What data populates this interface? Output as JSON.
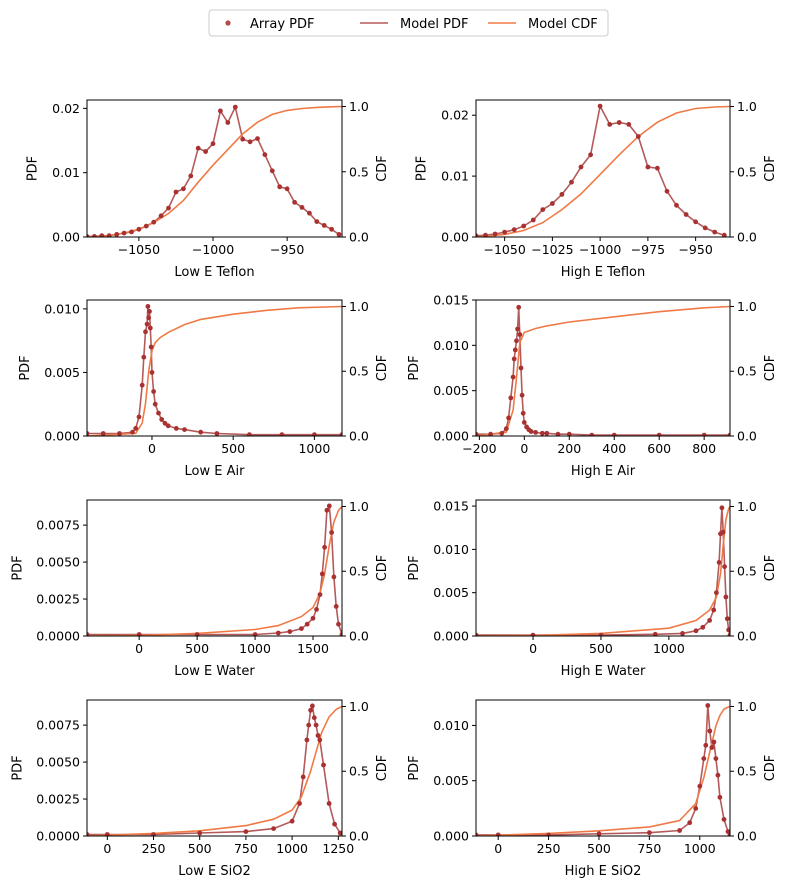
{
  "legend": {
    "entries": [
      {
        "label": "Array PDF",
        "kind": "marker",
        "color": "#b24a4a"
      },
      {
        "label": "Model PDF",
        "kind": "line",
        "color": "#b55a5a"
      },
      {
        "label": "Model CDF",
        "kind": "line",
        "color": "#f07a45"
      }
    ],
    "placement": "top-center"
  },
  "chart_data": [
    {
      "type": "line",
      "xlabel": "Low E Teflon",
      "ylabel": "PDF",
      "y2label": "CDF",
      "xlim": [
        -1085,
        -913
      ],
      "ylim": [
        0,
        0.0213
      ],
      "y2lim": [
        0,
        1.05
      ],
      "xticks": [
        -1050,
        -1000,
        -950
      ],
      "yticks": [
        0,
        0.01,
        0.02
      ],
      "y2ticks": [
        0,
        0.5,
        1.0
      ],
      "pdf": {
        "x": [
          -1085,
          -1080,
          -1075,
          -1070,
          -1065,
          -1060,
          -1055,
          -1050,
          -1045,
          -1040,
          -1035,
          -1030,
          -1025,
          -1020,
          -1015,
          -1010,
          -1005,
          -1000,
          -995,
          -990,
          -985,
          -980,
          -975,
          -970,
          -965,
          -960,
          -955,
          -950,
          -945,
          -940,
          -935,
          -930,
          -925,
          -920,
          -915
        ],
        "y": [
          0.0001,
          0.0001,
          0.0002,
          0.0002,
          0.0004,
          0.0006,
          0.0008,
          0.0012,
          0.0017,
          0.0023,
          0.0033,
          0.0045,
          0.007,
          0.0075,
          0.0095,
          0.0138,
          0.0133,
          0.0145,
          0.0196,
          0.0178,
          0.0202,
          0.0152,
          0.0148,
          0.0153,
          0.0128,
          0.0103,
          0.0078,
          0.0075,
          0.0054,
          0.0046,
          0.0037,
          0.0024,
          0.0018,
          0.0012,
          0.0004
        ]
      },
      "cdf": {
        "x": [
          -1085,
          -1070,
          -1060,
          -1050,
          -1040,
          -1030,
          -1020,
          -1010,
          -1000,
          -990,
          -980,
          -970,
          -960,
          -950,
          -940,
          -930,
          -920,
          -913
        ],
        "y": [
          0.0,
          0.01,
          0.03,
          0.06,
          0.11,
          0.18,
          0.28,
          0.42,
          0.55,
          0.67,
          0.79,
          0.88,
          0.94,
          0.97,
          0.985,
          0.993,
          0.998,
          1.0
        ]
      }
    },
    {
      "type": "line",
      "xlabel": "High E Teflon",
      "ylabel": "PDF",
      "y2label": "CDF",
      "xlim": [
        -1065,
        -932
      ],
      "ylim": [
        0,
        0.0225
      ],
      "y2lim": [
        0,
        1.05
      ],
      "xticks": [
        -1050,
        -1025,
        -1000,
        -975,
        -950
      ],
      "yticks": [
        0,
        0.01,
        0.02
      ],
      "y2ticks": [
        0,
        0.5,
        1.0
      ],
      "pdf": {
        "x": [
          -1065,
          -1060,
          -1055,
          -1050,
          -1045,
          -1040,
          -1035,
          -1030,
          -1025,
          -1020,
          -1015,
          -1010,
          -1005,
          -1000,
          -995,
          -990,
          -985,
          -980,
          -975,
          -970,
          -965,
          -960,
          -955,
          -950,
          -945,
          -940,
          -935
        ],
        "y": [
          0.0002,
          0.0003,
          0.0005,
          0.0008,
          0.0012,
          0.0018,
          0.0028,
          0.0045,
          0.0055,
          0.007,
          0.009,
          0.0115,
          0.0135,
          0.0215,
          0.0185,
          0.0188,
          0.0185,
          0.0165,
          0.0115,
          0.0113,
          0.0075,
          0.0052,
          0.0037,
          0.0025,
          0.0015,
          0.0008,
          0.0003
        ]
      },
      "cdf": {
        "x": [
          -1065,
          -1050,
          -1040,
          -1030,
          -1020,
          -1010,
          -1000,
          -990,
          -980,
          -970,
          -960,
          -950,
          -940,
          -932
        ],
        "y": [
          0.0,
          0.02,
          0.05,
          0.11,
          0.21,
          0.33,
          0.48,
          0.63,
          0.77,
          0.88,
          0.95,
          0.985,
          0.996,
          1.0
        ]
      }
    },
    {
      "type": "line",
      "xlabel": "Low E Air",
      "ylabel": "PDF",
      "y2label": "CDF",
      "xlim": [
        -400,
        1170
      ],
      "ylim": [
        0,
        0.0107
      ],
      "y2lim": [
        0,
        1.05
      ],
      "xticks": [
        0,
        500,
        1000
      ],
      "yticks": [
        0,
        0.005,
        0.01
      ],
      "y2ticks": [
        0,
        0.5,
        1.0
      ],
      "pdf": {
        "x": [
          -400,
          -300,
          -200,
          -120,
          -100,
          -80,
          -60,
          -50,
          -40,
          -30,
          -25,
          -20,
          -15,
          -10,
          -5,
          0,
          10,
          20,
          40,
          60,
          80,
          100,
          150,
          200,
          300,
          400,
          600,
          800,
          1000,
          1170
        ],
        "y": [
          0.0002,
          0.0002,
          0.0002,
          0.0003,
          0.0006,
          0.0015,
          0.004,
          0.0062,
          0.0082,
          0.0088,
          0.0102,
          0.0093,
          0.0098,
          0.0085,
          0.007,
          0.005,
          0.0035,
          0.0025,
          0.0018,
          0.0013,
          0.001,
          0.0008,
          0.0006,
          0.0005,
          0.0003,
          0.0002,
          0.0001,
          0.0001,
          0.0001,
          0.0001
        ]
      },
      "cdf": {
        "x": [
          -400,
          -100,
          -60,
          -40,
          -20,
          0,
          20,
          50,
          100,
          200,
          300,
          500,
          700,
          900,
          1170
        ],
        "y": [
          0.0,
          0.02,
          0.1,
          0.25,
          0.5,
          0.66,
          0.72,
          0.76,
          0.8,
          0.86,
          0.9,
          0.94,
          0.97,
          0.99,
          1.0
        ]
      }
    },
    {
      "type": "line",
      "xlabel": "High E Air",
      "ylabel": "PDF",
      "y2label": "CDF",
      "xlim": [
        -215,
        915
      ],
      "ylim": [
        0,
        0.015
      ],
      "y2lim": [
        0,
        1.05
      ],
      "xticks": [
        -200,
        0,
        200,
        400,
        600,
        800
      ],
      "yticks": [
        0,
        0.005,
        0.01,
        0.015
      ],
      "y2ticks": [
        0,
        0.5,
        1.0
      ],
      "pdf": {
        "x": [
          -215,
          -150,
          -100,
          -80,
          -70,
          -60,
          -50,
          -45,
          -40,
          -35,
          -30,
          -25,
          -20,
          -15,
          -10,
          -5,
          0,
          10,
          20,
          30,
          50,
          80,
          100,
          150,
          200,
          300,
          400,
          600,
          800,
          915
        ],
        "y": [
          0.0002,
          0.0002,
          0.0003,
          0.0008,
          0.002,
          0.0042,
          0.0065,
          0.0085,
          0.0095,
          0.0105,
          0.0118,
          0.0142,
          0.0112,
          0.0075,
          0.0045,
          0.0025,
          0.0015,
          0.001,
          0.0007,
          0.0005,
          0.0004,
          0.0003,
          0.0003,
          0.0002,
          0.0002,
          0.0001,
          0.0001,
          0.0001,
          0.0001,
          0.0001
        ]
      },
      "cdf": {
        "x": [
          -215,
          -80,
          -50,
          -35,
          -20,
          0,
          50,
          100,
          200,
          400,
          600,
          800,
          915
        ],
        "y": [
          0.0,
          0.03,
          0.2,
          0.45,
          0.72,
          0.8,
          0.83,
          0.85,
          0.88,
          0.92,
          0.96,
          0.99,
          1.0
        ]
      }
    },
    {
      "type": "line",
      "xlabel": "Low E Water",
      "ylabel": "PDF",
      "y2label": "CDF",
      "xlim": [
        -450,
        1750
      ],
      "ylim": [
        0,
        0.0092
      ],
      "y2lim": [
        0,
        1.05
      ],
      "xticks": [
        0,
        500,
        1000,
        1500
      ],
      "yticks": [
        0,
        0.0025,
        0.005,
        0.0075
      ],
      "y2ticks": [
        0,
        0.5,
        1.0
      ],
      "pdf": {
        "x": [
          -450,
          0,
          500,
          1000,
          1200,
          1300,
          1400,
          1450,
          1500,
          1530,
          1560,
          1580,
          1600,
          1620,
          1640,
          1660,
          1680,
          1700,
          1720,
          1750
        ],
        "y": [
          0.0001,
          0.0001,
          0.0001,
          0.0001,
          0.0002,
          0.0003,
          0.0005,
          0.0008,
          0.0012,
          0.0018,
          0.0028,
          0.0042,
          0.006,
          0.0085,
          0.0088,
          0.007,
          0.004,
          0.002,
          0.0008,
          0.0001
        ]
      },
      "cdf": {
        "x": [
          -450,
          0,
          500,
          1000,
          1200,
          1400,
          1500,
          1560,
          1600,
          1640,
          1680,
          1720,
          1750
        ],
        "y": [
          0.0,
          0.005,
          0.02,
          0.05,
          0.08,
          0.15,
          0.22,
          0.33,
          0.48,
          0.7,
          0.88,
          0.97,
          1.0
        ]
      }
    },
    {
      "type": "line",
      "xlabel": "High E Water",
      "ylabel": "PDF",
      "y2label": "CDF",
      "xlim": [
        -420,
        1450
      ],
      "ylim": [
        0,
        0.0157
      ],
      "y2lim": [
        0,
        1.05
      ],
      "xticks": [
        0,
        500,
        1000
      ],
      "yticks": [
        0,
        0.005,
        0.01,
        0.015
      ],
      "y2ticks": [
        0,
        0.5,
        1.0
      ],
      "pdf": {
        "x": [
          -420,
          0,
          500,
          900,
          1100,
          1200,
          1250,
          1300,
          1330,
          1350,
          1370,
          1380,
          1390,
          1400,
          1410,
          1420,
          1430,
          1440,
          1450
        ],
        "y": [
          0.0001,
          0.0001,
          0.0001,
          0.0002,
          0.0003,
          0.0006,
          0.001,
          0.0018,
          0.003,
          0.005,
          0.0085,
          0.0118,
          0.0148,
          0.012,
          0.008,
          0.0045,
          0.002,
          0.0007,
          0.0001
        ]
      },
      "cdf": {
        "x": [
          -420,
          0,
          500,
          1000,
          1200,
          1300,
          1350,
          1380,
          1400,
          1420,
          1440,
          1450
        ],
        "y": [
          0.0,
          0.005,
          0.02,
          0.06,
          0.12,
          0.2,
          0.3,
          0.48,
          0.7,
          0.9,
          0.98,
          1.0
        ]
      }
    },
    {
      "type": "line",
      "xlabel": "Low E SiO2",
      "ylabel": "PDF",
      "y2label": "CDF",
      "xlim": [
        -110,
        1270
      ],
      "ylim": [
        0,
        0.0092
      ],
      "y2lim": [
        0,
        1.05
      ],
      "xticks": [
        0,
        250,
        500,
        750,
        1000,
        1250
      ],
      "yticks": [
        0,
        0.0025,
        0.005,
        0.0075
      ],
      "y2ticks": [
        0,
        0.5,
        1.0
      ],
      "pdf": {
        "x": [
          -110,
          0,
          250,
          500,
          750,
          900,
          1000,
          1040,
          1060,
          1080,
          1090,
          1100,
          1110,
          1120,
          1130,
          1140,
          1150,
          1170,
          1200,
          1230,
          1260
        ],
        "y": [
          0.0001,
          0.0001,
          0.0001,
          0.0002,
          0.0003,
          0.0005,
          0.001,
          0.0022,
          0.004,
          0.0065,
          0.0075,
          0.0085,
          0.0088,
          0.008,
          0.0075,
          0.0068,
          0.0065,
          0.0048,
          0.0022,
          0.0008,
          0.0002
        ]
      },
      "cdf": {
        "x": [
          -110,
          250,
          500,
          750,
          900,
          1000,
          1050,
          1100,
          1130,
          1160,
          1200,
          1240,
          1270
        ],
        "y": [
          0.0,
          0.02,
          0.04,
          0.08,
          0.13,
          0.2,
          0.3,
          0.5,
          0.65,
          0.8,
          0.92,
          0.98,
          1.0
        ]
      }
    },
    {
      "type": "line",
      "xlabel": "High E SiO2",
      "ylabel": "PDF",
      "y2label": "CDF",
      "xlim": [
        -110,
        1150
      ],
      "ylim": [
        0,
        0.0123
      ],
      "y2lim": [
        0,
        1.05
      ],
      "xticks": [
        0,
        250,
        500,
        750,
        1000
      ],
      "yticks": [
        0,
        0.005,
        0.01
      ],
      "y2ticks": [
        0,
        0.5,
        1.0
      ],
      "pdf": {
        "x": [
          -110,
          0,
          250,
          500,
          750,
          900,
          950,
          980,
          1000,
          1020,
          1030,
          1040,
          1050,
          1060,
          1070,
          1080,
          1090,
          1100,
          1120,
          1140,
          1150
        ],
        "y": [
          0.0001,
          0.0001,
          0.0001,
          0.0002,
          0.0003,
          0.0005,
          0.0012,
          0.0025,
          0.0045,
          0.007,
          0.0082,
          0.0118,
          0.0095,
          0.008,
          0.0085,
          0.007,
          0.0055,
          0.0035,
          0.0015,
          0.0004,
          0.0001
        ]
      },
      "cdf": {
        "x": [
          -110,
          250,
          500,
          750,
          900,
          980,
          1020,
          1050,
          1080,
          1100,
          1120,
          1140,
          1150
        ],
        "y": [
          0.0,
          0.02,
          0.04,
          0.07,
          0.12,
          0.25,
          0.45,
          0.65,
          0.85,
          0.93,
          0.98,
          0.995,
          1.0
        ]
      }
    }
  ]
}
